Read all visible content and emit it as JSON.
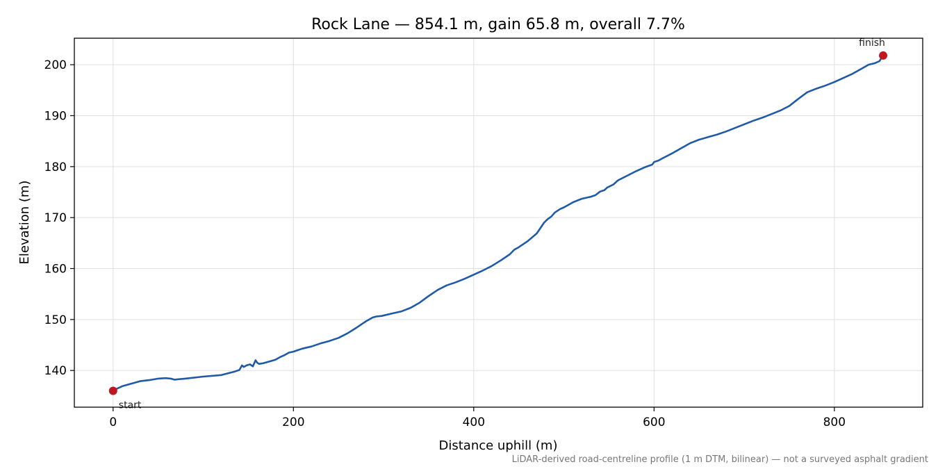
{
  "chart_data": {
    "type": "line",
    "title": "Rock Lane — 854.1 m, gain 65.8 m, overall 7.7%",
    "xlabel": "Distance uphill (m)",
    "ylabel": "Elevation (m)",
    "xlim": [
      -43,
      898
    ],
    "ylim": [
      132.8,
      205.2
    ],
    "xticks": [
      0,
      200,
      400,
      600,
      800
    ],
    "yticks": [
      140,
      150,
      160,
      170,
      180,
      190,
      200
    ],
    "grid": true,
    "series": [
      {
        "color": "#1f5aa8",
        "x": [
          0,
          5,
          10,
          20,
          30,
          40,
          50,
          58,
          64,
          68,
          80,
          100,
          120,
          135,
          140,
          143,
          145,
          148,
          152,
          155,
          158,
          160,
          162,
          166,
          170,
          180,
          185,
          190,
          195,
          200,
          205,
          210,
          220,
          230,
          240,
          250,
          260,
          270,
          280,
          288,
          292,
          298,
          310,
          320,
          330,
          340,
          350,
          360,
          370,
          380,
          390,
          400,
          410,
          420,
          430,
          440,
          445,
          450,
          460,
          470,
          478,
          482,
          486,
          490,
          496,
          500,
          510,
          520,
          530,
          535,
          540,
          545,
          548,
          555,
          560,
          570,
          580,
          590,
          598,
          600,
          605,
          610,
          620,
          630,
          640,
          650,
          660,
          670,
          680,
          690,
          700,
          710,
          720,
          730,
          740,
          750,
          760,
          770,
          780,
          790,
          800,
          810,
          820,
          830,
          838,
          845,
          850,
          854.1
        ],
        "y": [
          136.0,
          136.5,
          136.9,
          137.4,
          137.9,
          138.1,
          138.4,
          138.5,
          138.4,
          138.2,
          138.4,
          138.8,
          139.1,
          139.8,
          140.1,
          141.0,
          140.7,
          141.0,
          141.2,
          140.8,
          142.0,
          141.5,
          141.3,
          141.4,
          141.6,
          142.1,
          142.6,
          143.0,
          143.5,
          143.7,
          144.0,
          144.3,
          144.7,
          145.3,
          145.8,
          146.4,
          147.3,
          148.4,
          149.6,
          150.4,
          150.6,
          150.7,
          151.2,
          151.6,
          152.3,
          153.3,
          154.6,
          155.8,
          156.7,
          157.3,
          158.0,
          158.8,
          159.6,
          160.5,
          161.6,
          162.8,
          163.7,
          164.2,
          165.4,
          166.9,
          169.0,
          169.7,
          170.2,
          171.0,
          171.7,
          172.0,
          173.0,
          173.7,
          174.1,
          174.4,
          175.1,
          175.4,
          175.9,
          176.5,
          177.3,
          178.2,
          179.1,
          179.9,
          180.4,
          180.9,
          181.2,
          181.7,
          182.6,
          183.6,
          184.6,
          185.3,
          185.8,
          186.3,
          186.9,
          187.6,
          188.3,
          189.0,
          189.6,
          190.3,
          191.0,
          191.9,
          193.3,
          194.6,
          195.3,
          195.9,
          196.6,
          197.4,
          198.2,
          199.2,
          200.0,
          200.3,
          200.7,
          201.8
        ]
      }
    ],
    "markers": [
      {
        "label": "start",
        "x": 0,
        "y": 136.0,
        "color": "#c0161f"
      },
      {
        "label": "finish",
        "x": 854.1,
        "y": 201.8,
        "color": "#c0161f"
      }
    ],
    "footnote": "LiDAR-derived road-centreline profile (1 m DTM, bilinear) — not a surveyed asphalt gradient"
  }
}
